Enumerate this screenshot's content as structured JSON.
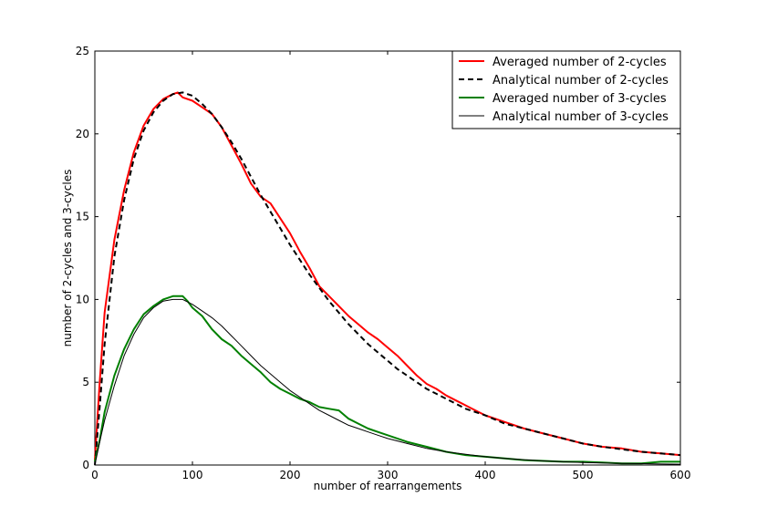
{
  "chart_data": {
    "type": "line",
    "title": "",
    "xlabel": "number of rearrangements",
    "ylabel": "number of 2-cycles and 3-cycles",
    "xlim": [
      0,
      600
    ],
    "ylim": [
      0,
      25
    ],
    "xticks": [
      0,
      100,
      200,
      300,
      400,
      500,
      600
    ],
    "yticks": [
      0,
      5,
      10,
      15,
      20,
      25
    ],
    "grid": false,
    "legend_position": "top-right",
    "series": [
      {
        "name": "Averaged number of 2-cycles",
        "color": "#ff0000",
        "style": "solid",
        "width": "thick",
        "x": [
          0,
          5,
          10,
          20,
          30,
          40,
          50,
          60,
          70,
          80,
          85,
          90,
          100,
          110,
          120,
          130,
          140,
          150,
          160,
          170,
          180,
          190,
          200,
          210,
          220,
          230,
          240,
          250,
          260,
          270,
          280,
          290,
          300,
          310,
          320,
          330,
          340,
          350,
          360,
          370,
          380,
          390,
          400,
          420,
          440,
          460,
          480,
          500,
          520,
          540,
          560,
          580,
          600
        ],
        "y": [
          0.3,
          5.0,
          9.2,
          13.6,
          16.6,
          18.9,
          20.5,
          21.5,
          22.1,
          22.4,
          22.5,
          22.2,
          22.0,
          21.6,
          21.2,
          20.4,
          19.3,
          18.2,
          17.0,
          16.2,
          15.8,
          14.9,
          14.0,
          12.9,
          11.9,
          10.8,
          10.2,
          9.6,
          9.0,
          8.5,
          8.0,
          7.6,
          7.1,
          6.6,
          6.0,
          5.4,
          4.9,
          4.6,
          4.2,
          3.9,
          3.6,
          3.3,
          3.0,
          2.6,
          2.2,
          1.9,
          1.6,
          1.3,
          1.1,
          1.0,
          0.8,
          0.7,
          0.6
        ]
      },
      {
        "name": "Analytical number of 2-cycles",
        "color": "#000000",
        "style": "dashed",
        "width": "thick",
        "x": [
          0,
          5,
          10,
          20,
          30,
          40,
          50,
          60,
          70,
          80,
          90,
          100,
          110,
          120,
          130,
          140,
          150,
          160,
          170,
          180,
          190,
          200,
          210,
          220,
          230,
          240,
          250,
          260,
          270,
          280,
          290,
          300,
          310,
          320,
          330,
          340,
          350,
          360,
          370,
          380,
          390,
          400,
          420,
          440,
          460,
          480,
          500,
          520,
          540,
          560,
          580,
          600
        ],
        "y": [
          0.0,
          3.5,
          7.3,
          12.6,
          16.0,
          18.5,
          20.2,
          21.3,
          22.0,
          22.4,
          22.5,
          22.3,
          21.8,
          21.2,
          20.4,
          19.5,
          18.5,
          17.4,
          16.3,
          15.3,
          14.3,
          13.3,
          12.4,
          11.5,
          10.7,
          9.9,
          9.2,
          8.5,
          7.9,
          7.3,
          6.8,
          6.3,
          5.8,
          5.4,
          5.0,
          4.6,
          4.3,
          4.0,
          3.7,
          3.4,
          3.2,
          3.0,
          2.5,
          2.2,
          1.9,
          1.6,
          1.3,
          1.1,
          0.95,
          0.8,
          0.7,
          0.6
        ]
      },
      {
        "name": "Averaged number of 3-cycles",
        "color": "#008000",
        "style": "solid",
        "width": "thick",
        "x": [
          0,
          5,
          10,
          20,
          30,
          40,
          50,
          60,
          70,
          80,
          90,
          95,
          100,
          110,
          120,
          130,
          140,
          150,
          160,
          170,
          180,
          190,
          200,
          210,
          220,
          230,
          240,
          250,
          260,
          270,
          280,
          290,
          300,
          320,
          340,
          360,
          380,
          400,
          420,
          440,
          460,
          480,
          500,
          520,
          540,
          560,
          580,
          600
        ],
        "y": [
          0.2,
          1.5,
          3.2,
          5.4,
          7.0,
          8.2,
          9.1,
          9.6,
          10.0,
          10.2,
          10.2,
          9.9,
          9.5,
          9.0,
          8.2,
          7.6,
          7.2,
          6.6,
          6.1,
          5.6,
          5.0,
          4.6,
          4.3,
          4.0,
          3.8,
          3.5,
          3.4,
          3.3,
          2.8,
          2.5,
          2.2,
          2.0,
          1.8,
          1.4,
          1.1,
          0.8,
          0.6,
          0.5,
          0.4,
          0.3,
          0.25,
          0.2,
          0.2,
          0.15,
          0.1,
          0.1,
          0.2,
          0.2
        ]
      },
      {
        "name": "Analytical number of 3-cycles",
        "color": "#000000",
        "style": "solid",
        "width": "thin",
        "x": [
          0,
          5,
          10,
          20,
          30,
          40,
          50,
          60,
          70,
          80,
          90,
          100,
          110,
          120,
          130,
          140,
          150,
          160,
          170,
          180,
          190,
          200,
          210,
          220,
          230,
          240,
          250,
          260,
          270,
          280,
          290,
          300,
          320,
          340,
          360,
          380,
          400,
          420,
          440,
          460,
          480,
          500,
          520,
          540,
          560,
          580,
          600
        ],
        "y": [
          0.0,
          1.4,
          2.7,
          4.8,
          6.6,
          7.9,
          8.9,
          9.5,
          9.9,
          10.0,
          10.0,
          9.7,
          9.3,
          8.9,
          8.4,
          7.8,
          7.2,
          6.6,
          6.0,
          5.5,
          5.0,
          4.5,
          4.1,
          3.7,
          3.3,
          3.0,
          2.7,
          2.4,
          2.2,
          2.0,
          1.8,
          1.6,
          1.3,
          1.0,
          0.8,
          0.65,
          0.5,
          0.4,
          0.32,
          0.25,
          0.2,
          0.15,
          0.12,
          0.1,
          0.08,
          0.06,
          0.05
        ]
      }
    ]
  }
}
